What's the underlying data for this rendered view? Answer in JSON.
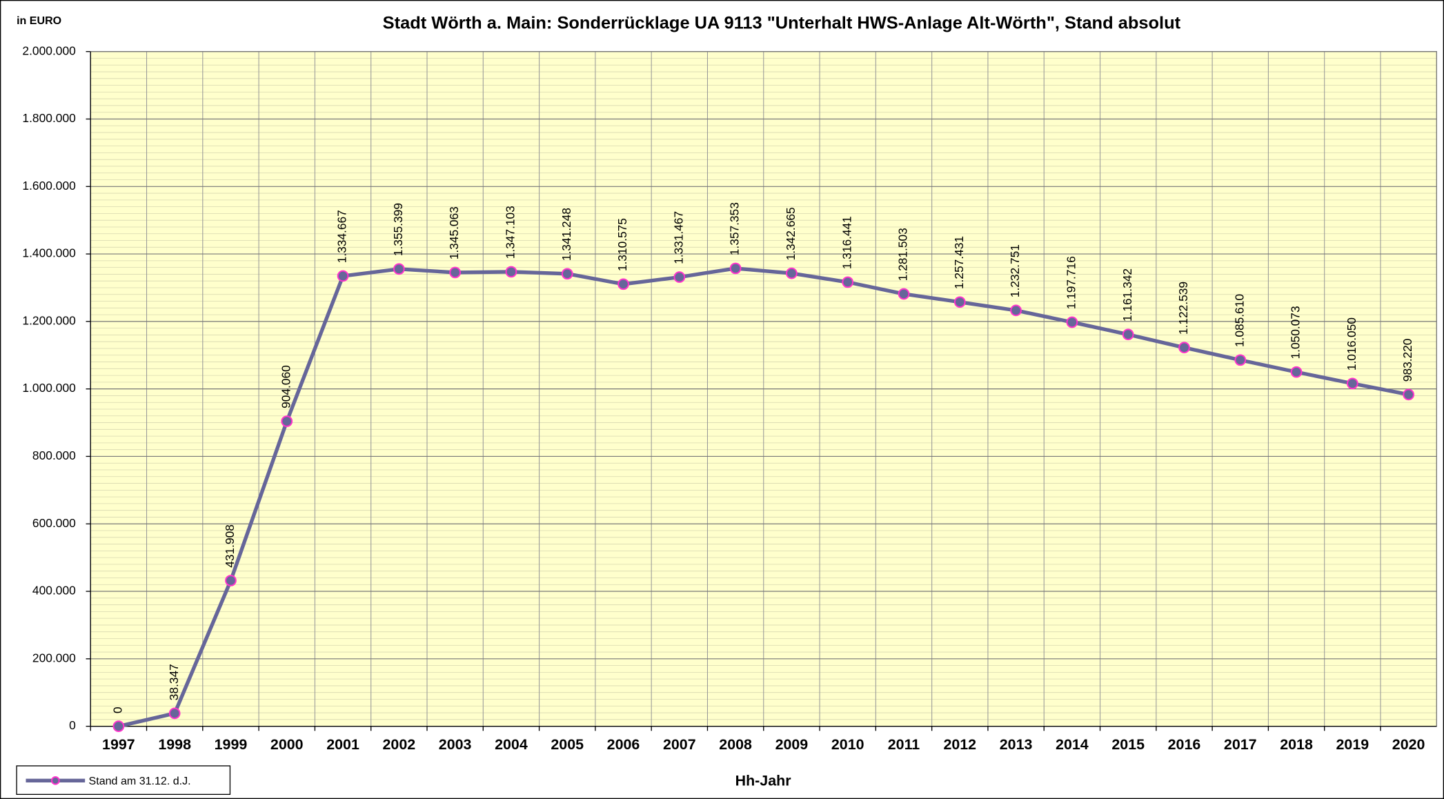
{
  "chart_data": {
    "type": "line",
    "title": "Stadt Wörth a. Main: Sonderrücklage UA 9113 \"Unterhalt HWS-Anlage Alt-Wörth\", Stand absolut",
    "y_axis_label": "in EURO",
    "x_axis_label": "Hh-Jahr",
    "categories": [
      "1997",
      "1998",
      "1999",
      "2000",
      "2001",
      "2002",
      "2003",
      "2004",
      "2005",
      "2006",
      "2007",
      "2008",
      "2009",
      "2010",
      "2011",
      "2012",
      "2013",
      "2014",
      "2015",
      "2016",
      "2017",
      "2018",
      "2019",
      "2020"
    ],
    "series": [
      {
        "name": "Stand am 31.12. d.J.",
        "color": "#666699",
        "marker_color": "#ff33cc",
        "values": [
          0,
          38347,
          431908,
          904060,
          1334667,
          1355399,
          1345063,
          1347103,
          1341248,
          1310575,
          1331467,
          1357353,
          1342665,
          1316441,
          1281503,
          1257431,
          1232751,
          1197716,
          1161342,
          1122539,
          1085610,
          1050073,
          1016050,
          983220
        ],
        "value_labels": [
          "0",
          "38.347",
          "431.908",
          "904.060",
          "1.334.667",
          "1.355.399",
          "1.345.063",
          "1.347.103",
          "1.341.248",
          "1.310.575",
          "1.331.467",
          "1.357.353",
          "1.342.665",
          "1.316.441",
          "1.281.503",
          "1.257.431",
          "1.232.751",
          "1.197.716",
          "1.161.342",
          "1.122.539",
          "1.085.610",
          "1.050.073",
          "1.016.050",
          "983.220"
        ]
      }
    ],
    "ylim": [
      0,
      2000000
    ],
    "yticks": [
      0,
      {
        "value": 200000,
        "label": "200.000"
      },
      {
        "value": 400000,
        "label": "400.000"
      },
      {
        "value": 600000,
        "label": "600.000"
      },
      {
        "value": 800000,
        "label": "800.000"
      },
      {
        "value": 1000000,
        "label": "1.000.000"
      },
      {
        "value": 1200000,
        "label": "1.200.000"
      },
      {
        "value": 1400000,
        "label": "1.400.000"
      },
      {
        "value": 1600000,
        "label": "1.600.000"
      },
      {
        "value": 1800000,
        "label": "1.800.000"
      },
      {
        "value": 2000000,
        "label": "2.000.000"
      }
    ],
    "grid": true,
    "plot_background": "#ffffcc",
    "legend": "bottom-left"
  }
}
